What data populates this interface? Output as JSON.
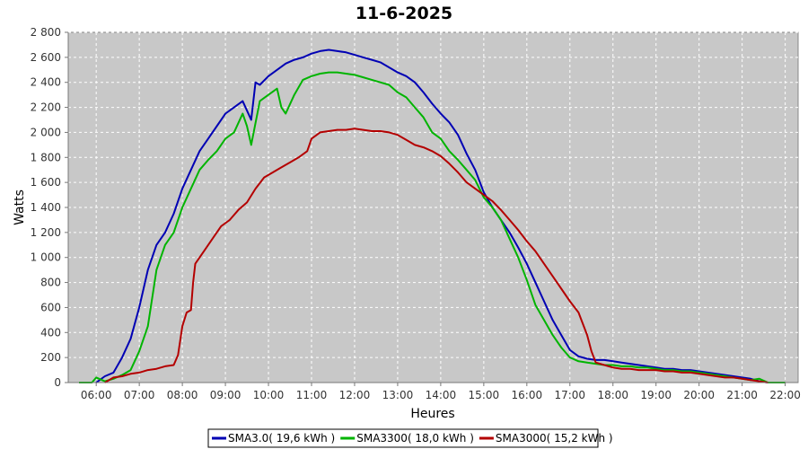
{
  "chart_data": {
    "type": "line",
    "title": "11-6-2025",
    "xlabel": "Heures",
    "ylabel": "Watts",
    "x_range": [
      5.35,
      22.3
    ],
    "ylim": [
      0,
      2800
    ],
    "x_ticks": [
      {
        "v": 6,
        "label": "06:00"
      },
      {
        "v": 7,
        "label": "07:00"
      },
      {
        "v": 8,
        "label": "08:00"
      },
      {
        "v": 9,
        "label": "09:00"
      },
      {
        "v": 10,
        "label": "10:00"
      },
      {
        "v": 11,
        "label": "11:00"
      },
      {
        "v": 12,
        "label": "12:00"
      },
      {
        "v": 13,
        "label": "13:00"
      },
      {
        "v": 14,
        "label": "14:00"
      },
      {
        "v": 15,
        "label": "15:00"
      },
      {
        "v": 16,
        "label": "16:00"
      },
      {
        "v": 17,
        "label": "17:00"
      },
      {
        "v": 18,
        "label": "18:00"
      },
      {
        "v": 19,
        "label": "19:00"
      },
      {
        "v": 20,
        "label": "20:00"
      },
      {
        "v": 21,
        "label": "21:00"
      },
      {
        "v": 22,
        "label": "22:00"
      }
    ],
    "y_ticks": [
      {
        "v": 0,
        "label": "0"
      },
      {
        "v": 200,
        "label": "200"
      },
      {
        "v": 400,
        "label": "400"
      },
      {
        "v": 600,
        "label": "600"
      },
      {
        "v": 800,
        "label": "800"
      },
      {
        "v": 1000,
        "label": "1 000"
      },
      {
        "v": 1200,
        "label": "1 200"
      },
      {
        "v": 1400,
        "label": "1 400"
      },
      {
        "v": 1600,
        "label": "1 600"
      },
      {
        "v": 1800,
        "label": "1 800"
      },
      {
        "v": 2000,
        "label": "2 000"
      },
      {
        "v": 2200,
        "label": "2 200"
      },
      {
        "v": 2400,
        "label": "2 400"
      },
      {
        "v": 2600,
        "label": "2 600"
      },
      {
        "v": 2800,
        "label": "2 800"
      }
    ],
    "grid": true,
    "plot_background": "#c8c8c8",
    "legend_position": "bottom-center",
    "series": [
      {
        "name": "SMA3.0( 19,6 kWh )",
        "color": "#0000b4",
        "points": [
          [
            6.0,
            0
          ],
          [
            6.2,
            50
          ],
          [
            6.4,
            80
          ],
          [
            6.6,
            200
          ],
          [
            6.8,
            350
          ],
          [
            7.0,
            600
          ],
          [
            7.2,
            900
          ],
          [
            7.4,
            1100
          ],
          [
            7.6,
            1200
          ],
          [
            7.8,
            1350
          ],
          [
            8.0,
            1550
          ],
          [
            8.2,
            1700
          ],
          [
            8.4,
            1850
          ],
          [
            8.6,
            1950
          ],
          [
            8.8,
            2050
          ],
          [
            9.0,
            2150
          ],
          [
            9.2,
            2200
          ],
          [
            9.4,
            2250
          ],
          [
            9.6,
            2100
          ],
          [
            9.7,
            2400
          ],
          [
            9.8,
            2380
          ],
          [
            10.0,
            2450
          ],
          [
            10.2,
            2500
          ],
          [
            10.4,
            2550
          ],
          [
            10.6,
            2580
          ],
          [
            10.8,
            2600
          ],
          [
            11.0,
            2630
          ],
          [
            11.2,
            2650
          ],
          [
            11.4,
            2660
          ],
          [
            11.6,
            2650
          ],
          [
            11.8,
            2640
          ],
          [
            12.0,
            2620
          ],
          [
            12.2,
            2600
          ],
          [
            12.4,
            2580
          ],
          [
            12.6,
            2560
          ],
          [
            12.8,
            2520
          ],
          [
            13.0,
            2480
          ],
          [
            13.2,
            2450
          ],
          [
            13.4,
            2400
          ],
          [
            13.6,
            2320
          ],
          [
            13.8,
            2230
          ],
          [
            14.0,
            2150
          ],
          [
            14.2,
            2080
          ],
          [
            14.4,
            1980
          ],
          [
            14.6,
            1830
          ],
          [
            14.8,
            1700
          ],
          [
            15.0,
            1520
          ],
          [
            15.2,
            1400
          ],
          [
            15.4,
            1300
          ],
          [
            15.6,
            1200
          ],
          [
            15.8,
            1080
          ],
          [
            16.0,
            950
          ],
          [
            16.2,
            800
          ],
          [
            16.4,
            650
          ],
          [
            16.6,
            500
          ],
          [
            16.8,
            380
          ],
          [
            17.0,
            260
          ],
          [
            17.2,
            210
          ],
          [
            17.4,
            190
          ],
          [
            17.6,
            180
          ],
          [
            17.8,
            180
          ],
          [
            18.0,
            170
          ],
          [
            18.2,
            160
          ],
          [
            18.4,
            150
          ],
          [
            18.6,
            140
          ],
          [
            18.8,
            130
          ],
          [
            19.0,
            120
          ],
          [
            19.2,
            110
          ],
          [
            19.4,
            110
          ],
          [
            19.6,
            100
          ],
          [
            19.8,
            100
          ],
          [
            20.0,
            90
          ],
          [
            20.2,
            80
          ],
          [
            20.4,
            70
          ],
          [
            20.6,
            60
          ],
          [
            20.8,
            50
          ],
          [
            21.0,
            40
          ],
          [
            21.2,
            30
          ],
          [
            21.4,
            10
          ],
          [
            21.6,
            0
          ]
        ]
      },
      {
        "name": "SMA3300( 18,0 kWh )",
        "color": "#00b400",
        "points": [
          [
            5.6,
            0
          ],
          [
            5.9,
            0
          ],
          [
            6.0,
            40
          ],
          [
            6.2,
            10
          ],
          [
            6.4,
            30
          ],
          [
            6.6,
            60
          ],
          [
            6.8,
            100
          ],
          [
            7.0,
            250
          ],
          [
            7.2,
            450
          ],
          [
            7.4,
            900
          ],
          [
            7.6,
            1100
          ],
          [
            7.8,
            1200
          ],
          [
            8.0,
            1400
          ],
          [
            8.2,
            1550
          ],
          [
            8.4,
            1700
          ],
          [
            8.6,
            1780
          ],
          [
            8.8,
            1850
          ],
          [
            9.0,
            1950
          ],
          [
            9.2,
            2000
          ],
          [
            9.4,
            2150
          ],
          [
            9.5,
            2050
          ],
          [
            9.6,
            1900
          ],
          [
            9.8,
            2250
          ],
          [
            10.0,
            2300
          ],
          [
            10.2,
            2350
          ],
          [
            10.3,
            2200
          ],
          [
            10.4,
            2150
          ],
          [
            10.6,
            2300
          ],
          [
            10.8,
            2420
          ],
          [
            11.0,
            2450
          ],
          [
            11.2,
            2470
          ],
          [
            11.4,
            2480
          ],
          [
            11.6,
            2480
          ],
          [
            11.8,
            2470
          ],
          [
            12.0,
            2460
          ],
          [
            12.2,
            2440
          ],
          [
            12.4,
            2420
          ],
          [
            12.6,
            2400
          ],
          [
            12.8,
            2380
          ],
          [
            13.0,
            2320
          ],
          [
            13.2,
            2280
          ],
          [
            13.4,
            2200
          ],
          [
            13.6,
            2120
          ],
          [
            13.8,
            2000
          ],
          [
            14.0,
            1950
          ],
          [
            14.2,
            1850
          ],
          [
            14.4,
            1780
          ],
          [
            14.6,
            1700
          ],
          [
            14.8,
            1620
          ],
          [
            15.0,
            1480
          ],
          [
            15.2,
            1400
          ],
          [
            15.4,
            1300
          ],
          [
            15.6,
            1150
          ],
          [
            15.8,
            1000
          ],
          [
            16.0,
            820
          ],
          [
            16.2,
            620
          ],
          [
            16.4,
            500
          ],
          [
            16.6,
            380
          ],
          [
            16.8,
            280
          ],
          [
            17.0,
            200
          ],
          [
            17.2,
            170
          ],
          [
            17.4,
            160
          ],
          [
            17.6,
            150
          ],
          [
            17.8,
            140
          ],
          [
            18.0,
            140
          ],
          [
            18.2,
            130
          ],
          [
            18.4,
            130
          ],
          [
            18.6,
            120
          ],
          [
            18.8,
            120
          ],
          [
            19.0,
            110
          ],
          [
            19.2,
            100
          ],
          [
            19.4,
            100
          ],
          [
            19.6,
            90
          ],
          [
            19.8,
            90
          ],
          [
            20.0,
            80
          ],
          [
            20.2,
            70
          ],
          [
            20.4,
            60
          ],
          [
            20.6,
            50
          ],
          [
            20.8,
            40
          ],
          [
            21.0,
            30
          ],
          [
            21.2,
            20
          ],
          [
            21.4,
            30
          ],
          [
            21.6,
            0
          ],
          [
            22.0,
            0
          ]
        ]
      },
      {
        "name": "SMA3000( 15,2 kWh )",
        "color": "#b40000",
        "points": [
          [
            6.2,
            0
          ],
          [
            6.4,
            40
          ],
          [
            6.6,
            50
          ],
          [
            6.8,
            70
          ],
          [
            7.0,
            80
          ],
          [
            7.2,
            100
          ],
          [
            7.4,
            110
          ],
          [
            7.6,
            130
          ],
          [
            7.8,
            140
          ],
          [
            7.9,
            220
          ],
          [
            8.0,
            450
          ],
          [
            8.1,
            560
          ],
          [
            8.2,
            580
          ],
          [
            8.25,
            800
          ],
          [
            8.3,
            950
          ],
          [
            8.5,
            1050
          ],
          [
            8.7,
            1150
          ],
          [
            8.9,
            1250
          ],
          [
            9.1,
            1300
          ],
          [
            9.3,
            1380
          ],
          [
            9.5,
            1440
          ],
          [
            9.7,
            1550
          ],
          [
            9.9,
            1640
          ],
          [
            10.1,
            1680
          ],
          [
            10.3,
            1720
          ],
          [
            10.5,
            1760
          ],
          [
            10.7,
            1800
          ],
          [
            10.9,
            1850
          ],
          [
            11.0,
            1950
          ],
          [
            11.2,
            2000
          ],
          [
            11.4,
            2010
          ],
          [
            11.6,
            2020
          ],
          [
            11.8,
            2020
          ],
          [
            12.0,
            2030
          ],
          [
            12.2,
            2020
          ],
          [
            12.4,
            2010
          ],
          [
            12.6,
            2010
          ],
          [
            12.8,
            2000
          ],
          [
            13.0,
            1980
          ],
          [
            13.2,
            1940
          ],
          [
            13.4,
            1900
          ],
          [
            13.6,
            1880
          ],
          [
            13.8,
            1850
          ],
          [
            14.0,
            1810
          ],
          [
            14.2,
            1750
          ],
          [
            14.4,
            1680
          ],
          [
            14.6,
            1600
          ],
          [
            14.8,
            1550
          ],
          [
            15.0,
            1500
          ],
          [
            15.2,
            1450
          ],
          [
            15.4,
            1380
          ],
          [
            15.6,
            1300
          ],
          [
            15.8,
            1220
          ],
          [
            16.0,
            1130
          ],
          [
            16.2,
            1050
          ],
          [
            16.4,
            950
          ],
          [
            16.6,
            850
          ],
          [
            16.8,
            750
          ],
          [
            17.0,
            650
          ],
          [
            17.2,
            560
          ],
          [
            17.4,
            380
          ],
          [
            17.5,
            250
          ],
          [
            17.6,
            160
          ],
          [
            17.8,
            140
          ],
          [
            18.0,
            120
          ],
          [
            18.2,
            110
          ],
          [
            18.4,
            110
          ],
          [
            18.6,
            100
          ],
          [
            18.8,
            100
          ],
          [
            19.0,
            100
          ],
          [
            19.2,
            90
          ],
          [
            19.4,
            90
          ],
          [
            19.6,
            80
          ],
          [
            19.8,
            80
          ],
          [
            20.0,
            70
          ],
          [
            20.2,
            60
          ],
          [
            20.4,
            50
          ],
          [
            20.6,
            40
          ],
          [
            20.8,
            40
          ],
          [
            21.0,
            30
          ],
          [
            21.2,
            20
          ],
          [
            21.4,
            10
          ],
          [
            21.6,
            0
          ]
        ]
      }
    ]
  }
}
